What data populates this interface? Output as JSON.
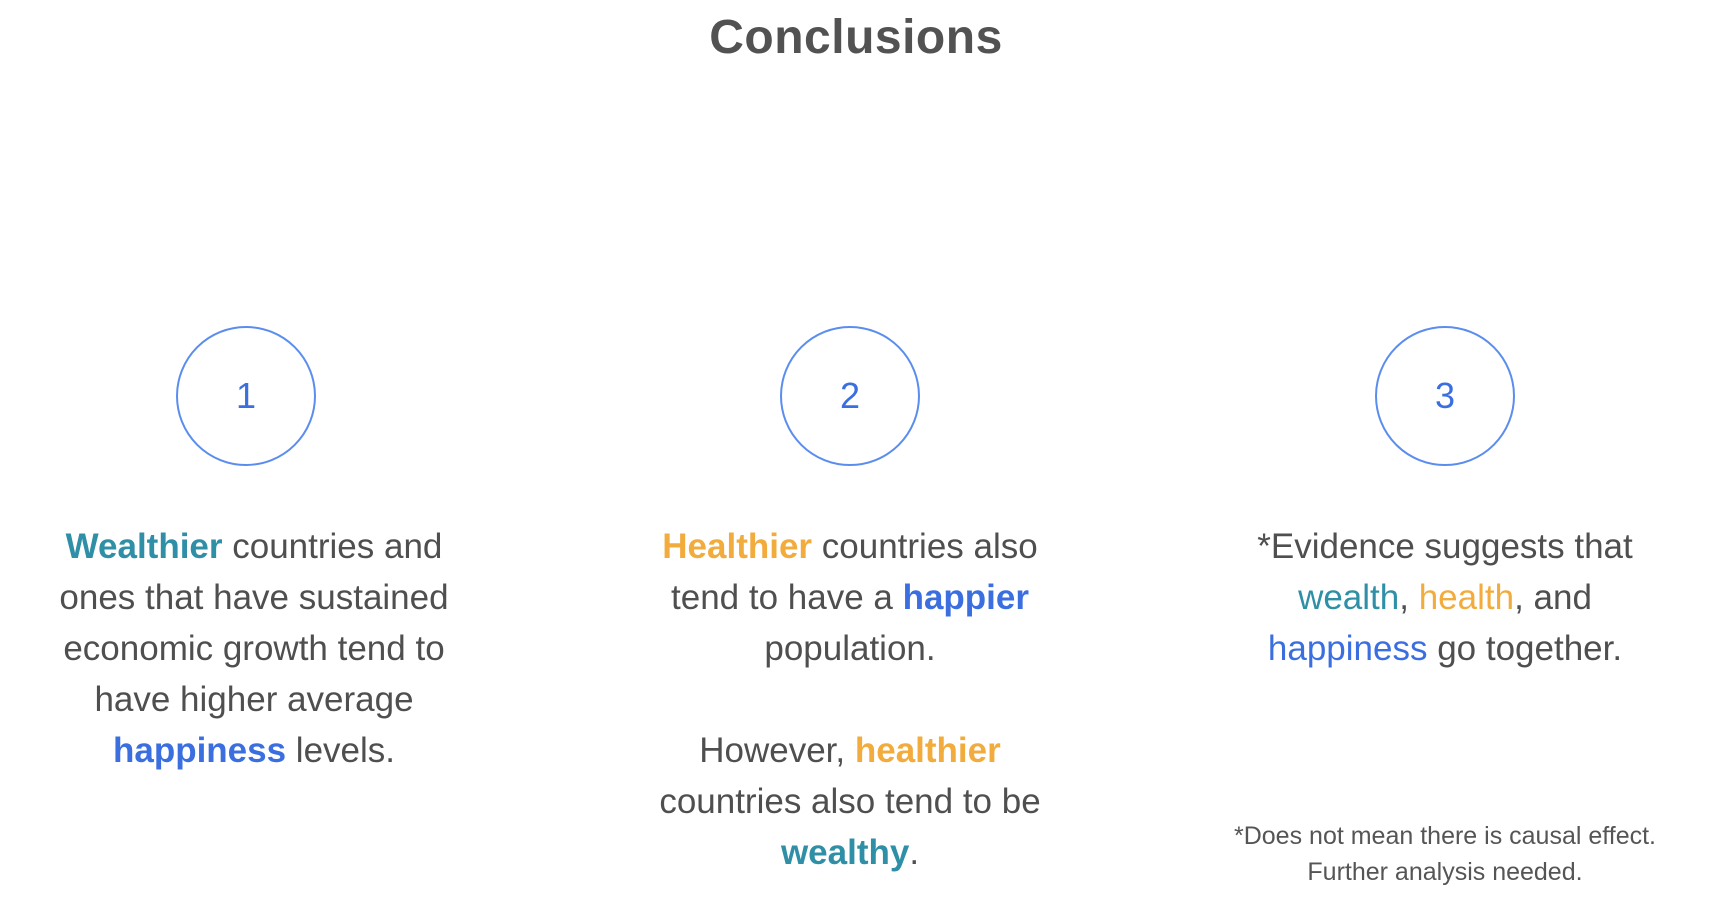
{
  "title": "Conclusions",
  "colors": {
    "teal": "#2f8fa6",
    "amber": "#f2ac3d",
    "blue": "#3b6fe0",
    "circle_border": "#5b8def",
    "text": "#4f4f4f"
  },
  "col1": {
    "number": "1",
    "wealthier": "Wealthier",
    "line1_rest": " countries and",
    "line2": "ones that have sustained",
    "line3": "economic growth tend to",
    "line4": "have higher average",
    "happiness": "happiness",
    "line5_rest": " levels."
  },
  "col2": {
    "number": "2",
    "healthier": "Healthier",
    "line1_rest": " countries also",
    "line2_start": "tend to have a ",
    "happier": "happier",
    "line3": "population.",
    "however": "However, ",
    "healthier2": "healthier",
    "line5": "countries also tend to be",
    "wealthy": "wealthy",
    "period": "."
  },
  "col3": {
    "number": "3",
    "line1": "*Evidence suggests that",
    "wealth": "wealth",
    "comma1": ", ",
    "health": "health",
    "and": ", and",
    "happiness": "happiness",
    "line3_rest": " go together.",
    "footnote_line1": "*Does not mean there is causal effect.",
    "footnote_line2": "Further analysis needed."
  }
}
